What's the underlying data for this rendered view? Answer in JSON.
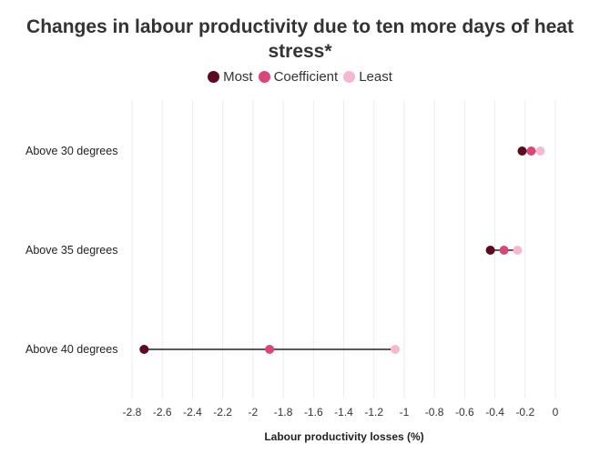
{
  "chart_data": {
    "type": "dumbbell",
    "title": "Changes in labour productivity due to ten more days of heat stress*",
    "xlabel": "Labour productivity losses (%)",
    "ylabel": "",
    "xlim": [
      -2.8,
      0
    ],
    "xticks": [
      -2.8,
      -2.6,
      -2.4,
      -2.2,
      -2,
      -1.8,
      -1.6,
      -1.4,
      -1.2,
      -1,
      -0.8,
      -0.6,
      -0.4,
      -0.2,
      0
    ],
    "xtick_labels": [
      "-2.8",
      "-2.6",
      "-2.4",
      "-2.2",
      "-2",
      "-1.8",
      "-1.6",
      "-1.4",
      "-1.2",
      "-1",
      "-0.8",
      "-0.6",
      "-0.4",
      "-0.2",
      "0"
    ],
    "grid": true,
    "legend_position": "top-center",
    "categories": [
      "Above 30 degrees",
      "Above 35 degrees",
      "Above 40 degrees"
    ],
    "series": [
      {
        "name": "Most",
        "color": "#5c0a1f",
        "values": [
          -0.22,
          -0.43,
          -2.72
        ]
      },
      {
        "name": "Coefficient",
        "color": "#d9477a",
        "values": [
          -0.16,
          -0.34,
          -1.89
        ]
      },
      {
        "name": "Least",
        "color": "#f5b8d3",
        "values": [
          -0.1,
          -0.25,
          -1.06
        ]
      }
    ]
  }
}
